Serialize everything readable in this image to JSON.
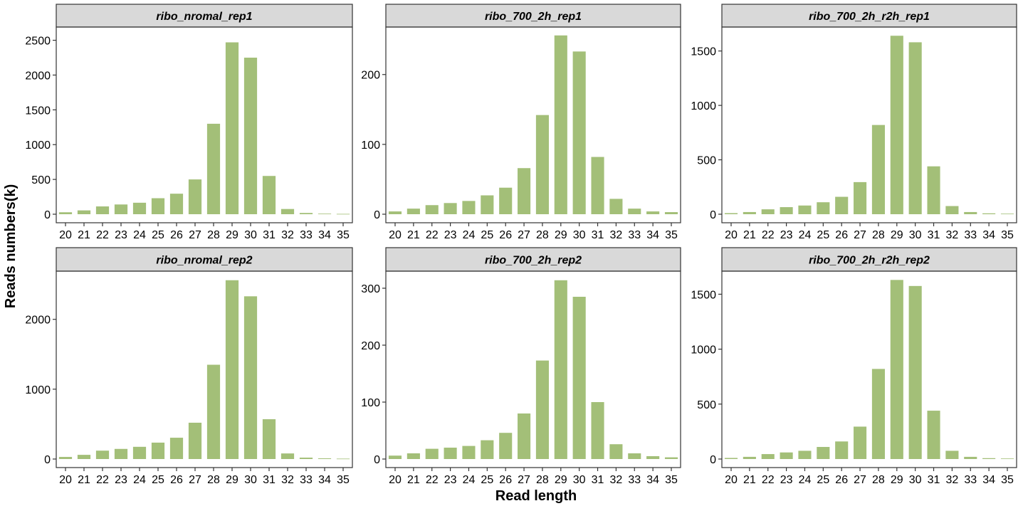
{
  "xlabel": "Read length",
  "ylabel": "Reads numbers(k)",
  "colors": {
    "bar": "#a3bf78",
    "strip_bg": "#d9d9d9",
    "axis": "#333333",
    "text": "#000000"
  },
  "chart_data": [
    {
      "type": "bar",
      "title": "ribo_nromal_rep1",
      "categories": [
        "20",
        "21",
        "22",
        "23",
        "24",
        "25",
        "26",
        "27",
        "28",
        "29",
        "30",
        "31",
        "32",
        "33",
        "34",
        "35"
      ],
      "values": [
        28,
        55,
        112,
        140,
        165,
        230,
        295,
        500,
        1300,
        2470,
        2250,
        550,
        75,
        18,
        8,
        5
      ],
      "yticks": [
        0,
        500,
        1000,
        1500,
        2000,
        2500
      ],
      "ylim": [
        0,
        2690
      ]
    },
    {
      "type": "bar",
      "title": "ribo_700_2h_rep1",
      "categories": [
        "20",
        "21",
        "22",
        "23",
        "24",
        "25",
        "26",
        "27",
        "28",
        "29",
        "30",
        "31",
        "32",
        "33",
        "34",
        "35"
      ],
      "values": [
        4,
        8,
        13,
        16,
        19,
        27,
        38,
        66,
        142,
        256,
        233,
        82,
        22,
        8,
        4,
        3
      ],
      "yticks": [
        0,
        100,
        200
      ],
      "ylim": [
        0,
        268
      ]
    },
    {
      "type": "bar",
      "title": "ribo_700_2h_r2h_rep1",
      "categories": [
        "20",
        "21",
        "22",
        "23",
        "24",
        "25",
        "26",
        "27",
        "28",
        "29",
        "30",
        "31",
        "32",
        "33",
        "34",
        "35"
      ],
      "values": [
        10,
        20,
        45,
        65,
        80,
        110,
        160,
        295,
        820,
        1640,
        1580,
        440,
        75,
        20,
        8,
        5
      ],
      "yticks": [
        0,
        500,
        1000,
        1500
      ],
      "ylim": [
        0,
        1720
      ]
    },
    {
      "type": "bar",
      "title": "ribo_nromal_rep2",
      "categories": [
        "20",
        "21",
        "22",
        "23",
        "24",
        "25",
        "26",
        "27",
        "28",
        "29",
        "30",
        "31",
        "32",
        "33",
        "34",
        "35"
      ],
      "values": [
        30,
        60,
        120,
        145,
        175,
        235,
        305,
        520,
        1350,
        2560,
        2330,
        570,
        80,
        20,
        10,
        6
      ],
      "yticks": [
        0,
        1000,
        2000
      ],
      "ylim": [
        0,
        2690
      ]
    },
    {
      "type": "bar",
      "title": "ribo_700_2h_rep2",
      "categories": [
        "20",
        "21",
        "22",
        "23",
        "24",
        "25",
        "26",
        "27",
        "28",
        "29",
        "30",
        "31",
        "32",
        "33",
        "34",
        "35"
      ],
      "values": [
        6,
        10,
        18,
        20,
        23,
        33,
        46,
        80,
        173,
        314,
        285,
        100,
        26,
        10,
        5,
        3
      ],
      "yticks": [
        0,
        100,
        200,
        300
      ],
      "ylim": [
        0,
        330
      ]
    },
    {
      "type": "bar",
      "title": "ribo_700_2h_r2h_rep2",
      "categories": [
        "20",
        "21",
        "22",
        "23",
        "24",
        "25",
        "26",
        "27",
        "28",
        "29",
        "30",
        "31",
        "32",
        "33",
        "34",
        "35"
      ],
      "values": [
        10,
        20,
        45,
        60,
        75,
        110,
        160,
        295,
        820,
        1630,
        1575,
        440,
        75,
        20,
        8,
        5
      ],
      "yticks": [
        0,
        500,
        1000,
        1500
      ],
      "ylim": [
        0,
        1710
      ]
    }
  ]
}
